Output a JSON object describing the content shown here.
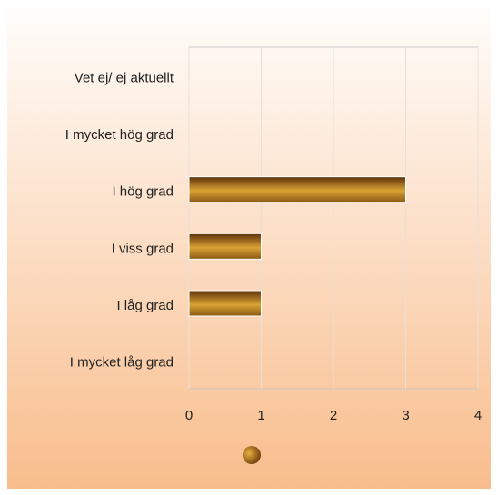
{
  "chart_data": {
    "type": "hbar",
    "categories": [
      "Vet ej/ ej aktuellt",
      "I mycket hög grad",
      "I hög grad",
      "I viss grad",
      "I låg grad",
      "I mycket låg grad"
    ],
    "values": [
      0,
      0,
      3,
      1,
      1,
      0
    ],
    "xlim": [
      0,
      4
    ],
    "xticks": [
      0,
      1,
      2,
      3,
      4
    ],
    "grid": true
  }
}
